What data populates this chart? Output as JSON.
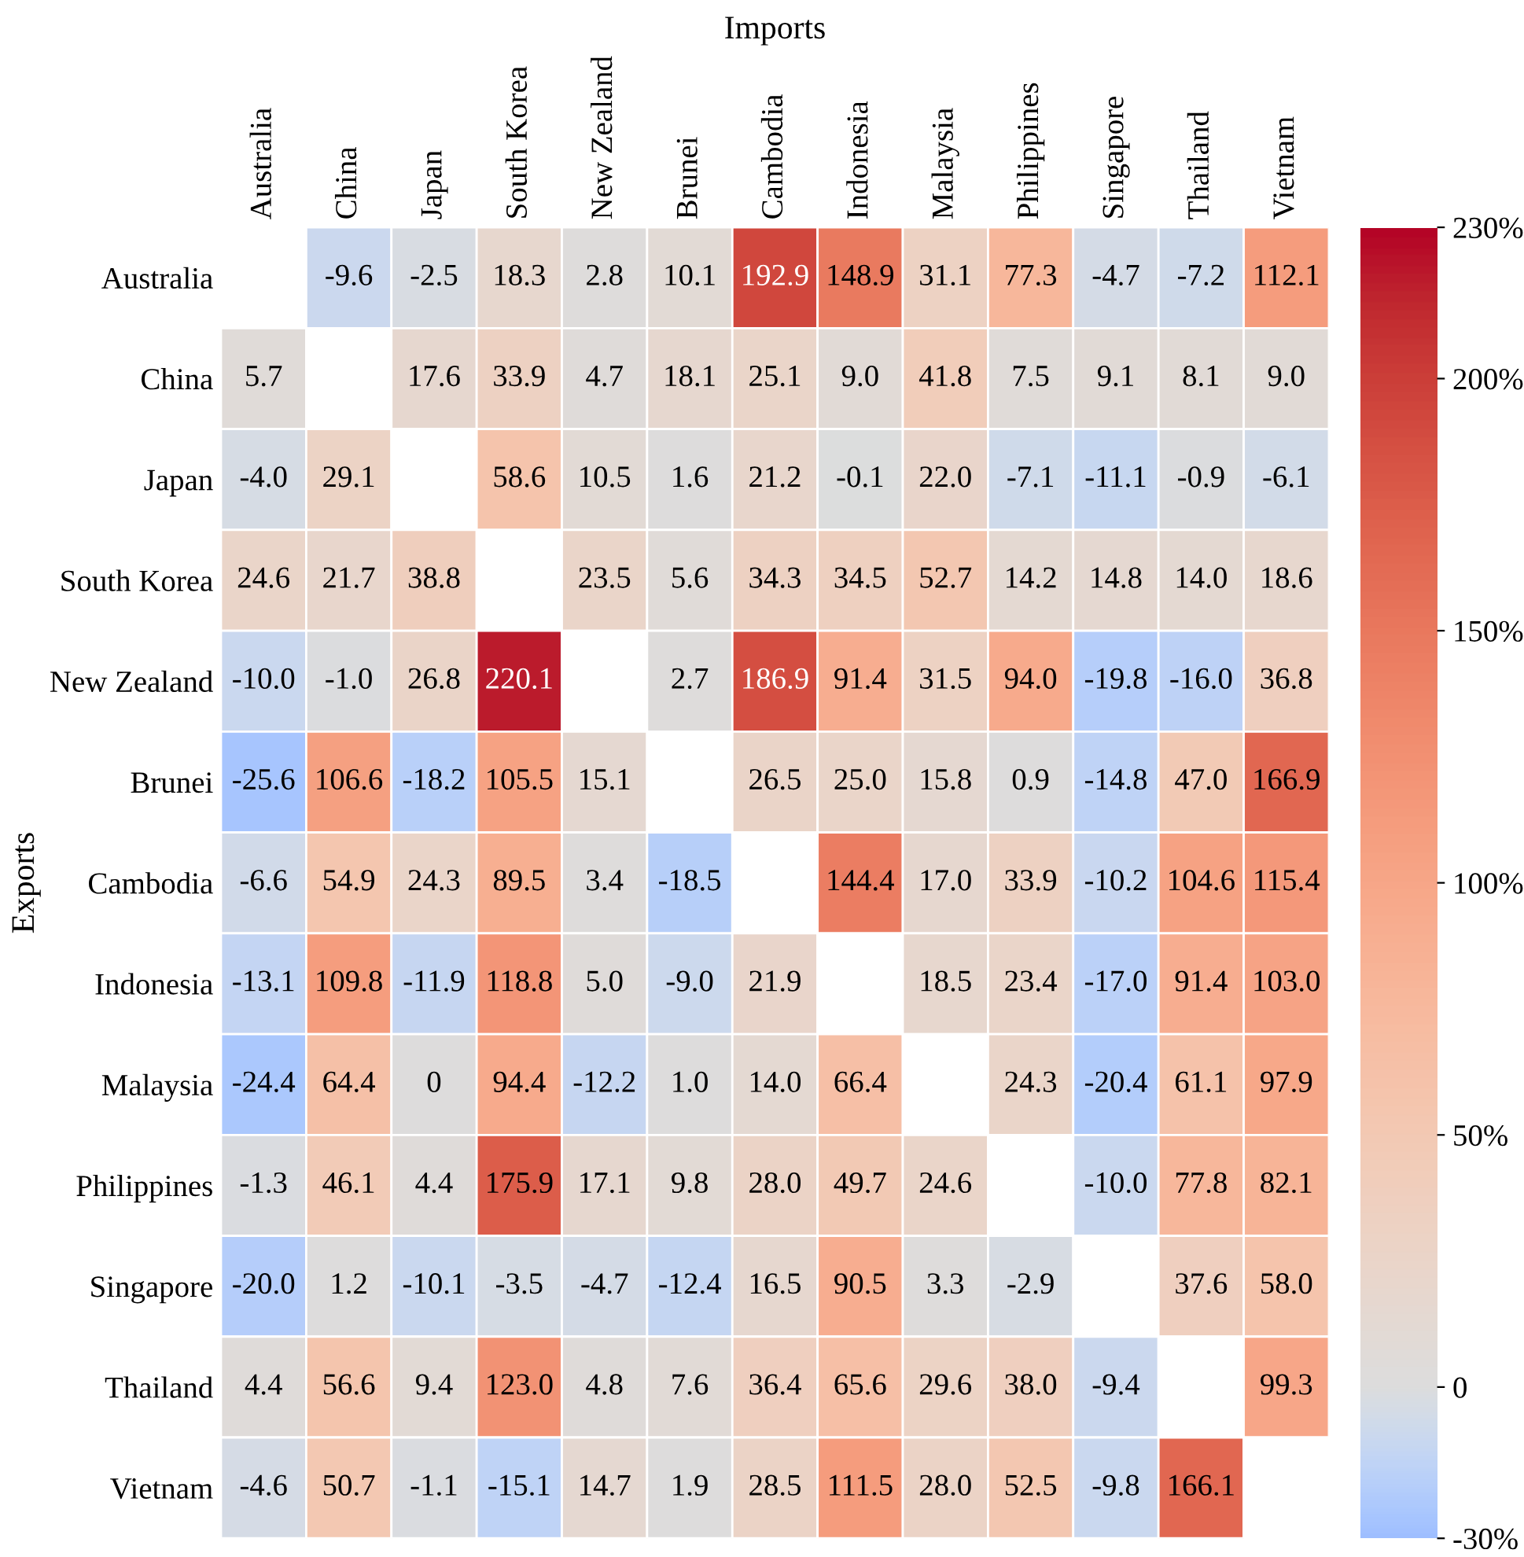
{
  "chart_data": {
    "type": "heatmap",
    "xlabel": "Imports",
    "ylabel": "Exports",
    "categories": [
      "Australia",
      "China",
      "Japan",
      "South Korea",
      "New Zealand",
      "Brunei",
      "Cambodia",
      "Indonesia",
      "Malaysia",
      "Philippines",
      "Singapore",
      "Thailand",
      "Vietnam"
    ],
    "y_categories": [
      "Australia",
      "China",
      "Japan",
      "South Korea",
      "New Zealand",
      "Brunei",
      "Cambodia",
      "Indonesia",
      "Malaysia",
      "Philippines",
      "Singapore",
      "Thailand",
      "Vietnam"
    ],
    "cells": [
      [
        null,
        -9.6,
        -2.5,
        18.3,
        2.8,
        10.1,
        192.9,
        148.9,
        31.1,
        77.3,
        -4.7,
        -7.2,
        112.1
      ],
      [
        5.7,
        null,
        17.6,
        33.9,
        4.7,
        18.1,
        25.1,
        9.0,
        41.8,
        7.5,
        9.1,
        8.1,
        9.0
      ],
      [
        -4.0,
        29.1,
        null,
        58.6,
        10.5,
        1.6,
        21.2,
        -0.1,
        22.0,
        -7.1,
        -11.1,
        -0.9,
        -6.1
      ],
      [
        24.6,
        21.7,
        38.8,
        null,
        23.5,
        5.6,
        34.3,
        34.5,
        52.7,
        14.2,
        14.8,
        14.0,
        18.6
      ],
      [
        -10.0,
        -1.0,
        26.8,
        220.1,
        null,
        2.7,
        186.9,
        91.4,
        31.5,
        94.0,
        -19.8,
        -16.0,
        36.8
      ],
      [
        -25.6,
        106.6,
        -18.2,
        105.5,
        15.1,
        null,
        26.5,
        25.0,
        15.8,
        0.9,
        -14.8,
        47.0,
        166.9
      ],
      [
        -6.6,
        54.9,
        24.3,
        89.5,
        3.4,
        -18.5,
        null,
        144.4,
        17.0,
        33.9,
        -10.2,
        104.6,
        115.4
      ],
      [
        -13.1,
        109.8,
        -11.9,
        118.8,
        5.0,
        -9.0,
        21.9,
        null,
        18.5,
        23.4,
        -17.0,
        91.4,
        103.0
      ],
      [
        -24.4,
        64.4,
        0,
        94.4,
        -12.2,
        1.0,
        14.0,
        66.4,
        null,
        24.3,
        -20.4,
        61.1,
        97.9
      ],
      [
        -1.3,
        46.1,
        4.4,
        175.9,
        17.1,
        9.8,
        28.0,
        49.7,
        24.6,
        null,
        -10.0,
        77.8,
        82.1
      ],
      [
        -20.0,
        1.2,
        -10.1,
        -3.5,
        -4.7,
        -12.4,
        16.5,
        90.5,
        3.3,
        -2.9,
        null,
        37.6,
        58.0
      ],
      [
        4.4,
        56.6,
        9.4,
        123.0,
        4.8,
        7.6,
        36.4,
        65.6,
        29.6,
        38.0,
        -9.4,
        null,
        99.3
      ],
      [
        -4.6,
        50.7,
        -1.1,
        -15.1,
        14.7,
        1.9,
        28.5,
        111.5,
        28.0,
        52.5,
        -9.8,
        166.1,
        null
      ]
    ],
    "cell_labels": [
      [
        null,
        "-9.6",
        "-2.5",
        "18.3",
        "2.8",
        "10.1",
        "192.9",
        "148.9",
        "31.1",
        "77.3",
        "-4.7",
        "-7.2",
        "112.1"
      ],
      [
        "5.7",
        null,
        "17.6",
        "33.9",
        "4.7",
        "18.1",
        "25.1",
        "9.0",
        "41.8",
        "7.5",
        "9.1",
        "8.1",
        "9.0"
      ],
      [
        "-4.0",
        "29.1",
        null,
        "58.6",
        "10.5",
        "1.6",
        "21.2",
        "-0.1",
        "22.0",
        "-7.1",
        "-11.1",
        "-0.9",
        "-6.1"
      ],
      [
        "24.6",
        "21.7",
        "38.8",
        null,
        "23.5",
        "5.6",
        "34.3",
        "34.5",
        "52.7",
        "14.2",
        "14.8",
        "14.0",
        "18.6"
      ],
      [
        "-10.0",
        "-1.0",
        "26.8",
        "220.1",
        null,
        "2.7",
        "186.9",
        "91.4",
        "31.5",
        "94.0",
        "-19.8",
        "-16.0",
        "36.8"
      ],
      [
        "-25.6",
        "106.6",
        "-18.2",
        "105.5",
        "15.1",
        null,
        "26.5",
        "25.0",
        "15.8",
        "0.9",
        "-14.8",
        "47.0",
        "166.9"
      ],
      [
        "-6.6",
        "54.9",
        "24.3",
        "89.5",
        "3.4",
        "-18.5",
        null,
        "144.4",
        "17.0",
        "33.9",
        "-10.2",
        "104.6",
        "115.4"
      ],
      [
        "-13.1",
        "109.8",
        "-11.9",
        "118.8",
        "5.0",
        "-9.0",
        "21.9",
        null,
        "18.5",
        "23.4",
        "-17.0",
        "91.4",
        "103.0"
      ],
      [
        "-24.4",
        "64.4",
        "0",
        "94.4",
        "-12.2",
        "1.0",
        "14.0",
        "66.4",
        null,
        "24.3",
        "-20.4",
        "61.1",
        "97.9"
      ],
      [
        "-1.3",
        "46.1",
        "4.4",
        "175.9",
        "17.1",
        "9.8",
        "28.0",
        "49.7",
        "24.6",
        null,
        "-10.0",
        "77.8",
        "82.1"
      ],
      [
        "-20.0",
        "1.2",
        "-10.1",
        "-3.5",
        "-4.7",
        "-12.4",
        "16.5",
        "90.5",
        "3.3",
        "-2.9",
        null,
        "37.6",
        "58.0"
      ],
      [
        "4.4",
        "56.6",
        "9.4",
        "123.0",
        "4.8",
        "7.6",
        "36.4",
        "65.6",
        "29.6",
        "38.0",
        "-9.4",
        null,
        "99.3"
      ],
      [
        "-4.6",
        "50.7",
        "-1.1",
        "-15.1",
        "14.7",
        "1.9",
        "28.5",
        "111.5",
        "28.0",
        "52.5",
        "-9.8",
        "166.1",
        null
      ]
    ],
    "clim": [
      -30,
      230
    ],
    "cticks": [
      {
        "value": -30,
        "label": "-30%"
      },
      {
        "value": 0,
        "label": "0"
      },
      {
        "value": 50,
        "label": "50%"
      },
      {
        "value": 100,
        "label": "100%"
      },
      {
        "value": 150,
        "label": "150%"
      },
      {
        "value": 200,
        "label": "200%"
      },
      {
        "value": 230,
        "label": "230%"
      }
    ]
  }
}
